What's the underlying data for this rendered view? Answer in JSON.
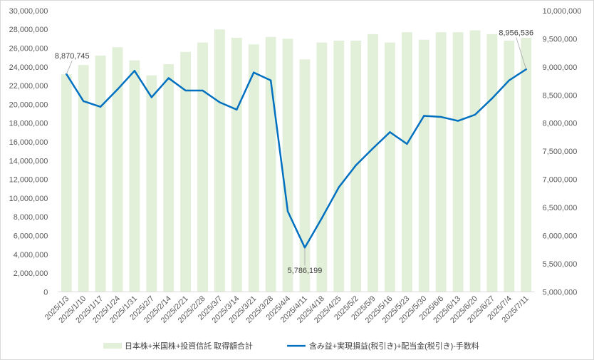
{
  "chart_data": {
    "type": "bar+line",
    "categories": [
      "2025/1/3",
      "2025/1/10",
      "2025/1/17",
      "2025/1/24",
      "2025/1/31",
      "2025/2/7",
      "2025/2/14",
      "2025/2/21",
      "2025/2/28",
      "2025/3/7",
      "2025/3/14",
      "2025/3/21",
      "2025/3/28",
      "2025/4/4",
      "2025/4/11",
      "2025/4/18",
      "2025/4/25",
      "2025/5/2",
      "2025/5/9",
      "2025/5/16",
      "2025/5/23",
      "2025/5/30",
      "2025/6/6",
      "2025/6/13",
      "2025/6/20",
      "2025/6/27",
      "2025/7/4",
      "2025/7/11"
    ],
    "left_axis": {
      "ticks": [
        "0",
        "2,000,000",
        "4,000,000",
        "6,000,000",
        "8,000,000",
        "10,000,000",
        "12,000,000",
        "14,000,000",
        "16,000,000",
        "18,000,000",
        "20,000,000",
        "22,000,000",
        "24,000,000",
        "26,000,000",
        "28,000,000",
        "30,000,000"
      ],
      "ylim": [
        0,
        30000000
      ]
    },
    "right_axis": {
      "ticks": [
        "5,000,000",
        "5,500,000",
        "6,000,000",
        "6,500,000",
        "7,000,000",
        "7,500,000",
        "8,000,000",
        "8,500,000",
        "9,000,000",
        "9,500,000",
        "10,000,000"
      ],
      "ylim": [
        5000000,
        10000000
      ]
    },
    "grid": false,
    "legend": "bottom",
    "series": [
      {
        "name": "日本株+米国株+投資信託 取得額合計",
        "type": "bar",
        "axis": "left",
        "color": "#e2efd9",
        "values": [
          23200000,
          24200000,
          25200000,
          26100000,
          24700000,
          23100000,
          24300000,
          25600000,
          26600000,
          28000000,
          27100000,
          26400000,
          27200000,
          27000000,
          24800000,
          26600000,
          26800000,
          26800000,
          27500000,
          26600000,
          27700000,
          26900000,
          27700000,
          27700000,
          27900000,
          27500000,
          26800000,
          27100000
        ]
      },
      {
        "name": "含み益+実現損益(税引き)+配当金(税引き)-手数料",
        "type": "line",
        "axis": "right",
        "color": "#0070c0",
        "values": [
          8870745,
          8390000,
          8290000,
          8600000,
          8930000,
          8460000,
          8800000,
          8580000,
          8580000,
          8370000,
          8240000,
          8900000,
          8760000,
          6430000,
          5786199,
          6310000,
          6860000,
          7250000,
          7550000,
          7840000,
          7630000,
          8130000,
          8110000,
          8040000,
          8150000,
          8440000,
          8760000,
          8956536
        ]
      }
    ],
    "data_labels": [
      {
        "series": 1,
        "index": 0,
        "text": "8,870,745"
      },
      {
        "series": 1,
        "index": 14,
        "text": "5,786,199"
      },
      {
        "series": 1,
        "index": 27,
        "text": "8,956,536"
      }
    ]
  }
}
